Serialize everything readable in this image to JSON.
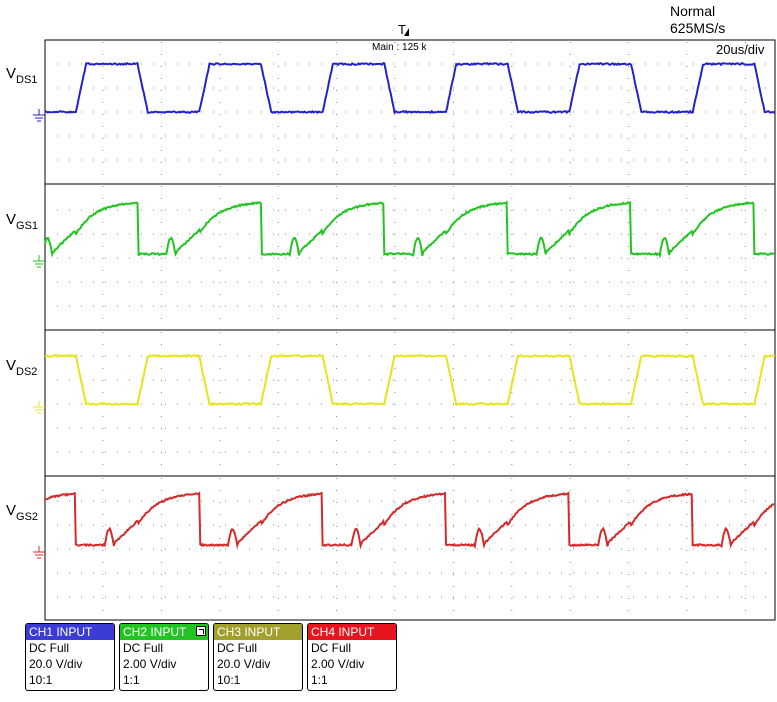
{
  "acquisition": {
    "mode": "Normal",
    "sample_rate": "625MS/s",
    "timebase": "20us/div"
  },
  "trigger": {
    "label": "T",
    "main_label": "Main : 125 k"
  },
  "channels": [
    {
      "id": "ch1",
      "header": "CH1 INPUT",
      "coupling": "DC Full",
      "scale": "20.0 V/div",
      "probe": "10:1",
      "color": "#2323c8",
      "header_color": "#3b3bd6",
      "header_text_color": "#ffffff"
    },
    {
      "id": "ch2",
      "header": "CH2 INPUT",
      "coupling": "DC Full",
      "scale": "2.00 V/div",
      "probe": "1:1",
      "color": "#22c422",
      "header_color": "#22c422",
      "header_text_color": "#ffffff"
    },
    {
      "id": "ch3",
      "header": "CH3 INPUT",
      "coupling": "DC Full",
      "scale": "20.0 V/div",
      "probe": "10:1",
      "color": "#e5e51a",
      "header_color": "#a2a02c",
      "header_text_color": "#ffffff"
    },
    {
      "id": "ch4",
      "header": "CH4 INPUT",
      "coupling": "DC Full",
      "scale": "2.00 V/div",
      "probe": "1:1",
      "color": "#d42a2a",
      "header_color": "#e8141e",
      "header_text_color": "#ffffff"
    }
  ],
  "chart_data": {
    "type": "line",
    "x_unit": "us",
    "x_range_us": [
      -12,
      272
    ],
    "period_us": 48,
    "grid": true,
    "series": [
      {
        "name_main": "V",
        "name_sub": "DS1",
        "channel": "ch1",
        "ground_div": 0,
        "low_div": 0,
        "high_div": 2.0,
        "high_start_us": 0,
        "high_end_us": 24,
        "shape": "trapezoid"
      },
      {
        "name_main": "V",
        "name_sub": "GS1",
        "channel": "ch2",
        "ground_div": 0,
        "low_div": 0,
        "high_div": 2.3,
        "charge_start_div": 1.0,
        "drive_start_us": 0,
        "drive_end_us": 24,
        "bump_us": [
          24,
          48
        ],
        "shape": "gate"
      },
      {
        "name_main": "V",
        "name_sub": "DS2",
        "channel": "ch3",
        "ground_div": 0,
        "low_div": 0,
        "high_div": 2.0,
        "high_start_us": 24,
        "high_end_us": 48,
        "shape": "trapezoid"
      },
      {
        "name_main": "V",
        "name_sub": "GS2",
        "channel": "ch4",
        "ground_div": 0,
        "low_div": 0,
        "high_div": 2.3,
        "charge_start_div": 1.0,
        "drive_start_us": 24,
        "drive_end_us": 48,
        "bump_us": [
          0,
          24
        ],
        "shape": "gate"
      }
    ]
  }
}
